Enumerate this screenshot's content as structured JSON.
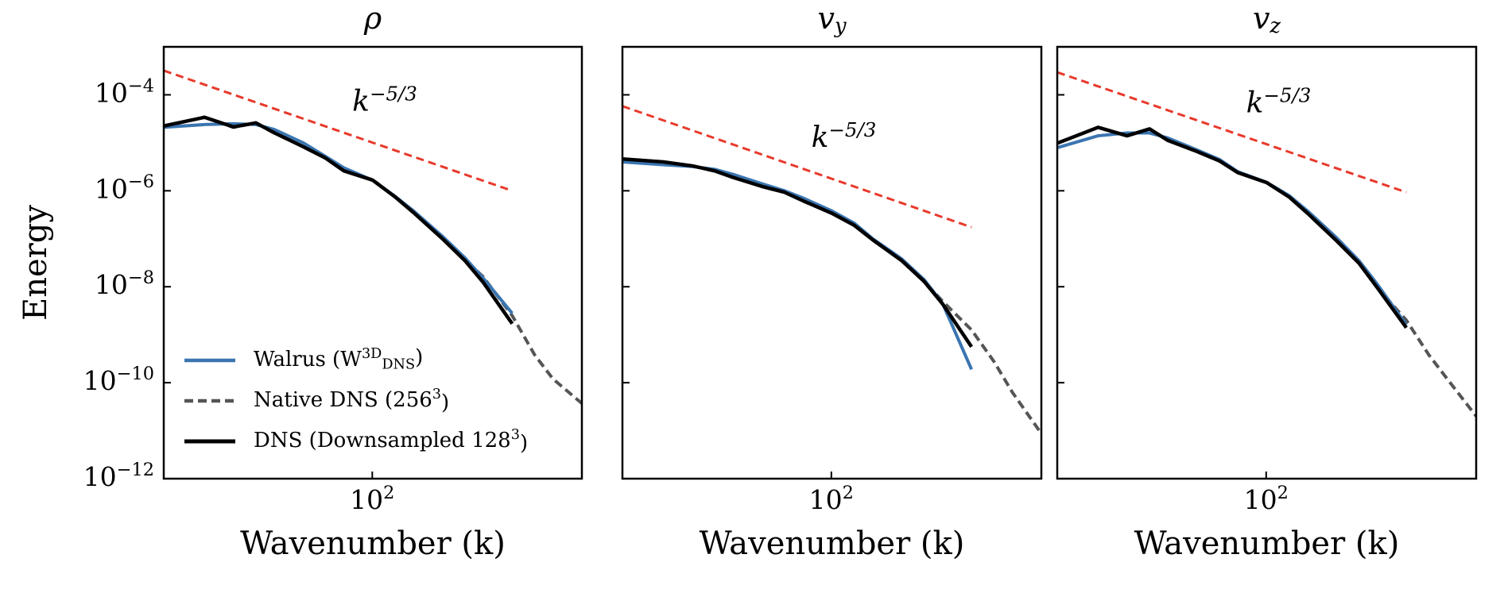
{
  "chart_data": [
    {
      "type": "line",
      "title": "ρ",
      "xlabel": "Wavenumber (k)",
      "ylabel": "Energy",
      "log_x": true,
      "log_y": true,
      "legend": "lower left",
      "xlim": [
        12.57,
        804.2
      ],
      "ylim": [
        1e-12,
        0.001
      ],
      "xticks": [
        {
          "value": 100,
          "label": "10^{2}"
        }
      ],
      "yticks": [
        {
          "value": 1e-12,
          "label": "10^{−12}"
        },
        {
          "value": 1e-10,
          "label": "10^{−10}"
        },
        {
          "value": 1e-08,
          "label": "10^{−8}"
        },
        {
          "value": 1e-06,
          "label": "10^{−6}"
        },
        {
          "value": 0.0001,
          "label": "10^{−4}"
        }
      ],
      "x": [
        12.57,
        18.85,
        25.13,
        31.42,
        37.7,
        50.27,
        62.83,
        75.4,
        100.5,
        125.7,
        150.8,
        201.1,
        251.3,
        301.6,
        402.1,
        502.7,
        603.2,
        804.2
      ],
      "series": [
        {
          "name": "Walrus (W^{3D}_{DNS})",
          "color": "#3a75b0",
          "style": "solid",
          "values": [
            2.1e-05,
            2.4e-05,
            2.5e-05,
            2.4e-05,
            1.9e-05,
            1e-05,
            5.2e-06,
            3e-06,
            1.66e-06,
            7.6e-07,
            3.8e-07,
            1.12e-07,
            4e-08,
            1.5e-08,
            2.8e-09,
            null,
            null,
            null
          ]
        },
        {
          "name": "Native DNS (256^{3})",
          "color": "#555555",
          "style": "dashed",
          "values": [
            2.2e-05,
            3.4e-05,
            2.1e-05,
            2.6e-05,
            1.6e-05,
            8.3e-06,
            4.8e-06,
            2.6e-06,
            1.7e-06,
            7.4e-07,
            3.5e-07,
            1.05e-07,
            3.7e-08,
            1.6e-08,
            2.5e-09,
            3.8e-10,
            1.2e-10,
            3.7e-11
          ]
        },
        {
          "name": "DNS (Downsampled 128^{3})",
          "color": "#000000",
          "style": "solid",
          "values": [
            2.24e-05,
            3.4e-05,
            2.14e-05,
            2.6e-05,
            1.62e-05,
            8.3e-06,
            4.8e-06,
            2.6e-06,
            1.66e-06,
            7.4e-07,
            3.5e-07,
            1e-07,
            3.5e-08,
            1.23e-08,
            1.7e-09,
            null,
            null,
            null
          ]
        }
      ],
      "reference": {
        "label": "k^{−5/3}",
        "color": "#e8392b",
        "x": [
          12.57,
          402.1
        ],
        "values": [
          0.00032,
          1e-06
        ]
      }
    },
    {
      "type": "line",
      "title": "v_{y}",
      "xlabel": "Wavenumber (k)",
      "log_x": true,
      "log_y": true,
      "ytick_labels": false,
      "xlim": [
        12.57,
        804.2
      ],
      "ylim": [
        1e-12,
        0.001
      ],
      "xticks": [
        {
          "value": 100,
          "label": "10^{2}"
        }
      ],
      "yticks": [
        1e-12,
        1e-10,
        1e-08,
        1e-06,
        0.0001
      ],
      "x": [
        12.57,
        18.85,
        25.13,
        31.42,
        37.7,
        50.27,
        62.83,
        75.4,
        100.5,
        125.7,
        150.8,
        201.1,
        251.3,
        301.6,
        402.1,
        502.7,
        603.2,
        804.2
      ],
      "series": [
        {
          "color": "#3a75b0",
          "style": "solid",
          "values": [
            4e-06,
            3.5e-06,
            3.2e-06,
            2.8e-06,
            2.2e-06,
            1.4e-06,
            1e-06,
            7.1e-07,
            3.8e-07,
            2.1e-07,
            1e-07,
            3.8e-08,
            1.4e-08,
            4.5e-09,
            1.9e-10,
            null,
            null,
            null
          ]
        },
        {
          "color": "#555555",
          "style": "dashed",
          "values": [
            4.6e-06,
            4e-06,
            3.3e-06,
            2.6e-06,
            1.9e-06,
            1.23e-06,
            9.3e-07,
            6.2e-07,
            3.4e-07,
            1.9e-07,
            9.5e-08,
            3.5e-08,
            1.29e-08,
            5e-09,
            1.26e-09,
            2.75e-10,
            6.3e-11,
            8.7e-12
          ]
        },
        {
          "color": "#000000",
          "style": "solid",
          "values": [
            4.6e-06,
            4e-06,
            3.3e-06,
            2.6e-06,
            1.9e-06,
            1.23e-06,
            9.3e-07,
            6.2e-07,
            3.4e-07,
            1.9e-07,
            9.5e-08,
            3.5e-08,
            1.29e-08,
            4.4e-09,
            5.6e-10,
            null,
            null,
            null
          ]
        }
      ],
      "reference": {
        "label": "k^{−5/3}",
        "color": "#e8392b",
        "x": [
          12.57,
          402.1
        ],
        "values": [
          5.8e-05,
          1.74e-07
        ]
      }
    },
    {
      "type": "line",
      "title": "v_{z}",
      "xlabel": "Wavenumber (k)",
      "log_x": true,
      "log_y": true,
      "ytick_labels": false,
      "xlim": [
        12.57,
        804.2
      ],
      "ylim": [
        1e-12,
        0.001
      ],
      "xticks": [
        {
          "value": 100,
          "label": "10^{2}"
        }
      ],
      "yticks": [
        1e-12,
        1e-10,
        1e-08,
        1e-06,
        0.0001
      ],
      "x": [
        12.57,
        18.85,
        25.13,
        31.42,
        37.7,
        50.27,
        62.83,
        75.4,
        100.5,
        125.7,
        150.8,
        201.1,
        251.3,
        301.6,
        402.1,
        502.7,
        603.2,
        804.2
      ],
      "series": [
        {
          "color": "#3a75b0",
          "style": "solid",
          "values": [
            7.9e-06,
            1.4e-05,
            1.6e-05,
            1.6e-05,
            1.26e-05,
            7.1e-06,
            4.5e-06,
            2.5e-06,
            1.5e-06,
            7.9e-07,
            3.8e-07,
            1.05e-07,
            3.5e-08,
            1.12e-08,
            1.6e-09,
            null,
            null,
            null
          ]
        },
        {
          "color": "#555555",
          "style": "dashed",
          "values": [
            9.8e-06,
            2.1e-05,
            1.4e-05,
            1.95e-05,
            1.12e-05,
            6.6e-06,
            4.2e-06,
            2.4e-06,
            1.48e-06,
            7.4e-07,
            3.4e-07,
            9.1e-08,
            3.1e-08,
            9.5e-09,
            2e-09,
            3.8e-10,
            1.2e-10,
            2e-11
          ]
        },
        {
          "color": "#000000",
          "style": "solid",
          "values": [
            9.8e-06,
            2.1e-05,
            1.4e-05,
            1.95e-05,
            1.12e-05,
            6.6e-06,
            4.2e-06,
            2.4e-06,
            1.48e-06,
            7.4e-07,
            3.4e-07,
            9.1e-08,
            3.1e-08,
            9.5e-09,
            1.4e-09,
            null,
            null,
            null
          ]
        }
      ],
      "reference": {
        "label": "k^{−5/3}",
        "color": "#e8392b",
        "x": [
          12.57,
          402.1
        ],
        "values": [
          0.000295,
          9.3e-07
        ]
      }
    }
  ]
}
